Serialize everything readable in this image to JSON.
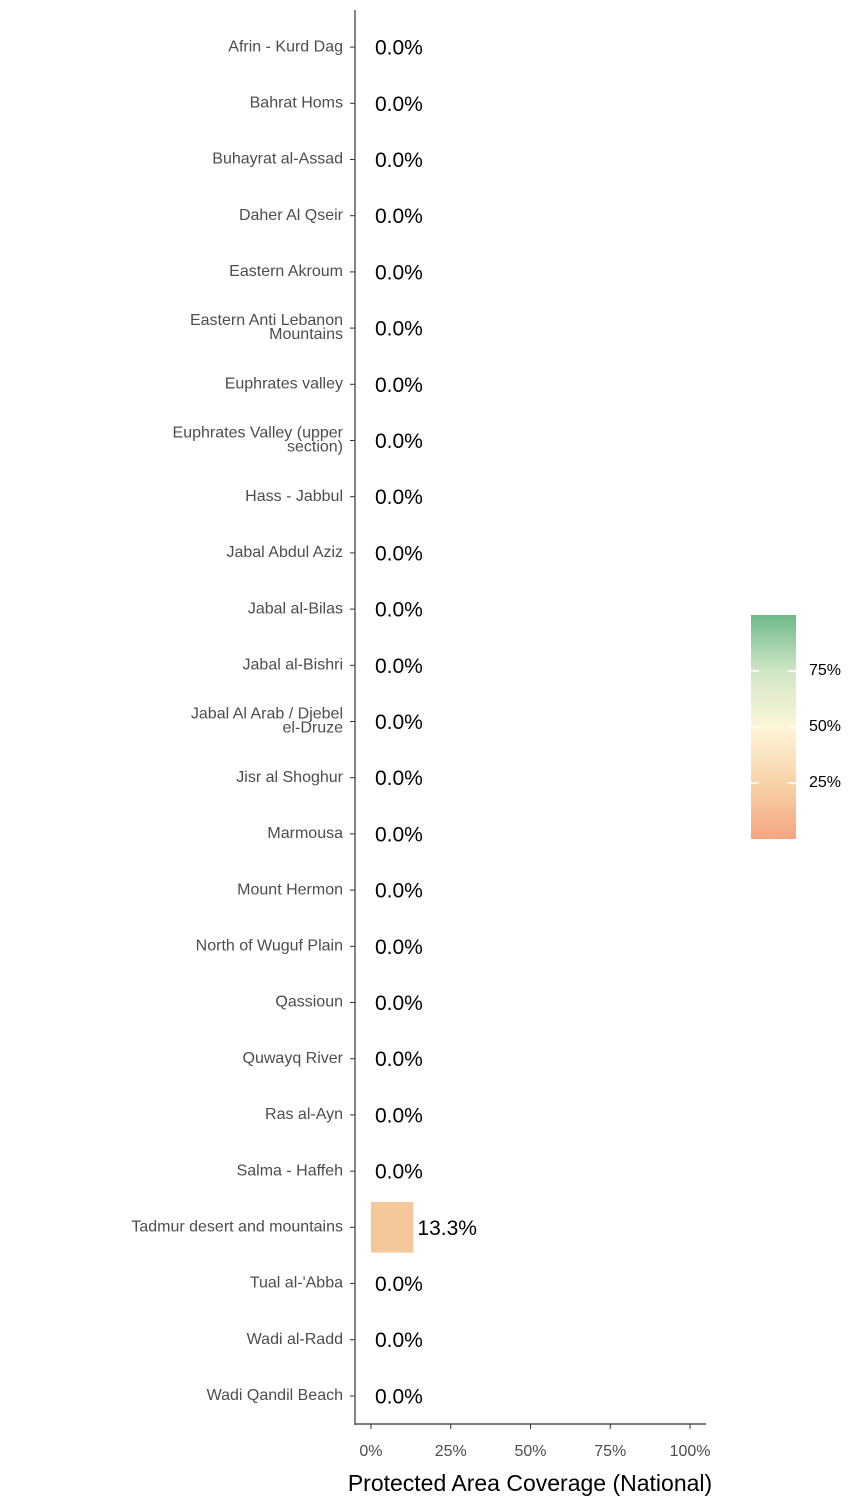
{
  "chart_data": {
    "type": "barh",
    "xlabel": "Protected Area Coverage (National)",
    "categories": [
      "Afrin - Kurd Dag",
      "Bahrat Homs",
      "Buhayrat al-Assad",
      "Daher Al Qseir",
      "Eastern Akroum",
      "Eastern Anti Lebanon\nMountains",
      "Euphrates valley",
      "Euphrates Valley (upper\nsection)",
      "Hass - Jabbul",
      "Jabal Abdul Aziz",
      "Jabal al-Bilas",
      "Jabal al-Bishri",
      "Jabal Al Arab / Djebel\nel-Druze",
      "Jisr al Shoghur",
      "Marmousa",
      "Mount Hermon",
      "North of Wuguf Plain",
      "Qassioun",
      "Quwayq River",
      "Ras al-Ayn",
      "Salma - Haffeh",
      "Tadmur desert and mountains",
      "Tual al-'Abba",
      "Wadi al-Radd",
      "Wadi Qandil Beach"
    ],
    "values": [
      0,
      0,
      0,
      0,
      0,
      0,
      0,
      0,
      0,
      0,
      0,
      0,
      0,
      0,
      0,
      0,
      0,
      0,
      0,
      0,
      0,
      13.3,
      0,
      0,
      0
    ],
    "value_labels": [
      "0.0%",
      "0.0%",
      "0.0%",
      "0.0%",
      "0.0%",
      "0.0%",
      "0.0%",
      "0.0%",
      "0.0%",
      "0.0%",
      "0.0%",
      "0.0%",
      "0.0%",
      "0.0%",
      "0.0%",
      "0.0%",
      "0.0%",
      "0.0%",
      "0.0%",
      "0.0%",
      "0.0%",
      "13.3%",
      "0.0%",
      "0.0%",
      "0.0%"
    ],
    "color": "#f5c89b",
    "xlim": [
      -5,
      105
    ],
    "xticks": [
      {
        "value": 0,
        "label": "0%"
      },
      {
        "value": 25,
        "label": "25%"
      },
      {
        "value": 50,
        "label": "50%"
      },
      {
        "value": 75,
        "label": "75%"
      },
      {
        "value": 100,
        "label": "100%"
      }
    ],
    "colorbar": {
      "lim": [
        0,
        100
      ],
      "colors": [
        "#f4a582",
        "#f8d3a8",
        "#fdf5d8",
        "#cfe6c6",
        "#6fb98c"
      ],
      "ticks": [
        {
          "value": 25,
          "label": "25%"
        },
        {
          "value": 50,
          "label": "50%"
        },
        {
          "value": 75,
          "label": "75%"
        }
      ]
    }
  }
}
